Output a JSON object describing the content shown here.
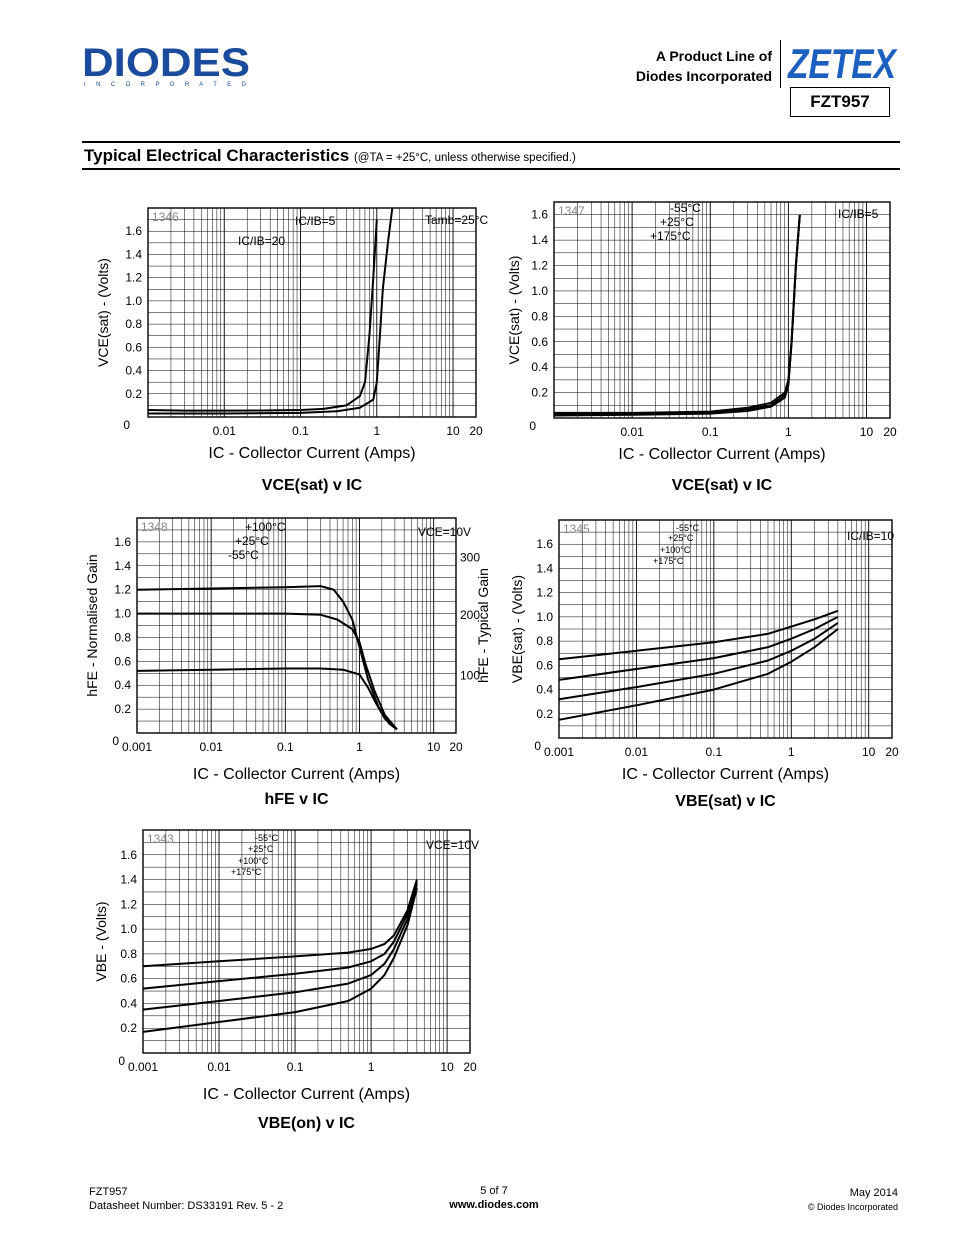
{
  "header": {
    "brand": "DIODES",
    "brand_sub": "I N C O R P O R A T E D",
    "product_line_1": "A Product Line of",
    "product_line_2": "Diodes Incorporated",
    "zetex": "ZETEX",
    "part_number": "FZT957"
  },
  "section": {
    "title": "Typical Electrical Characteristics",
    "conditions": "(@TA = +25°C, unless otherwise specified.)"
  },
  "colors": {
    "ink": "#000000",
    "grid": "#000000",
    "paper": "#ffffff"
  },
  "chart_data": [
    {
      "type": "line",
      "id": "1346",
      "title": "VCE(sat) v IC",
      "xlabel": "IC - Collector Current (Amps)",
      "ylabel": "VCE(sat) - (Volts)",
      "x_scale": "log",
      "xlim": [
        0.001,
        20
      ],
      "x_ticks": [
        "0.01",
        "0.1",
        "1",
        "10",
        "20"
      ],
      "ylim": [
        0,
        1.8
      ],
      "y_ticks": [
        "0",
        "0.2",
        "0.4",
        "0.6",
        "0.8",
        "1.0",
        "1.2",
        "1.4",
        "1.6"
      ],
      "annotations": [
        "IC/IB=5",
        "IC/IB=20",
        "Tamb=25°C"
      ],
      "grid": true,
      "series": [
        {
          "x": [
            0.001,
            0.003,
            0.01,
            0.03,
            0.1,
            0.2,
            0.4,
            0.6,
            0.7,
            0.8,
            0.9,
            1.0
          ],
          "y": [
            0.06,
            0.055,
            0.055,
            0.056,
            0.06,
            0.07,
            0.1,
            0.18,
            0.3,
            0.7,
            1.2,
            1.7
          ]
        },
        {
          "x": [
            0.001,
            0.01,
            0.1,
            0.3,
            0.6,
            0.9,
            1.0,
            1.1,
            1.2,
            1.4,
            1.6
          ],
          "y": [
            0.03,
            0.03,
            0.035,
            0.05,
            0.08,
            0.15,
            0.3,
            0.7,
            1.1,
            1.5,
            1.8
          ]
        }
      ]
    },
    {
      "type": "line",
      "id": "1347",
      "title": "VCE(sat) v IC",
      "xlabel": "IC - Collector Current (Amps)",
      "ylabel": "VCE(sat) - (Volts)",
      "x_scale": "log",
      "xlim": [
        0.001,
        20
      ],
      "x_ticks": [
        "0.01",
        "0.1",
        "1",
        "10",
        "20"
      ],
      "ylim": [
        0,
        1.7
      ],
      "y_ticks": [
        "0",
        "0.2",
        "0.4",
        "0.6",
        "0.8",
        "1.0",
        "1.2",
        "1.4",
        "1.6"
      ],
      "annotations": [
        "-55°C",
        "+25°C",
        "+175°C",
        "IC/IB=5"
      ],
      "grid": true,
      "series": [
        {
          "x": [
            0.001,
            0.01,
            0.1,
            0.3,
            0.6,
            0.9,
            1.0,
            1.1,
            1.25,
            1.4
          ],
          "y": [
            0.04,
            0.04,
            0.05,
            0.08,
            0.12,
            0.2,
            0.3,
            0.6,
            1.2,
            1.6
          ]
        },
        {
          "x": [
            0.001,
            0.01,
            0.1,
            0.3,
            0.6,
            0.9,
            1.0,
            1.1,
            1.25,
            1.4
          ],
          "y": [
            0.03,
            0.035,
            0.045,
            0.07,
            0.1,
            0.18,
            0.28,
            0.6,
            1.2,
            1.6
          ]
        },
        {
          "x": [
            0.001,
            0.01,
            0.1,
            0.3,
            0.6,
            0.9,
            1.0,
            1.1,
            1.25,
            1.4
          ],
          "y": [
            0.02,
            0.025,
            0.035,
            0.055,
            0.09,
            0.16,
            0.26,
            0.6,
            1.2,
            1.6
          ]
        }
      ]
    },
    {
      "type": "line",
      "id": "1348",
      "title": "hFE v IC",
      "xlabel": "IC - Collector Current (Amps)",
      "ylabel": "hFE - Normalised Gain",
      "ylabel_right": "hFE - Typical Gain",
      "x_scale": "log",
      "xlim": [
        0.001,
        20
      ],
      "x_ticks": [
        "0.001",
        "0.01",
        "0.1",
        "1",
        "10",
        "20"
      ],
      "ylim": [
        0,
        1.8
      ],
      "y_ticks": [
        "0",
        "0.2",
        "0.4",
        "0.6",
        "0.8",
        "1.0",
        "1.2",
        "1.4",
        "1.6"
      ],
      "y_right_ticks": [
        "100",
        "200",
        "300"
      ],
      "annotations": [
        "+100°C",
        "+25°C",
        "-55°C",
        "VCE=10V"
      ],
      "grid": true,
      "series": [
        {
          "x": [
            0.001,
            0.01,
            0.1,
            0.3,
            0.45,
            0.6,
            0.8,
            1.0,
            1.3,
            1.8,
            2.5,
            3.2
          ],
          "y": [
            1.2,
            1.21,
            1.22,
            1.23,
            1.2,
            1.1,
            0.95,
            0.72,
            0.45,
            0.22,
            0.08,
            0.03
          ]
        },
        {
          "x": [
            0.001,
            0.01,
            0.1,
            0.3,
            0.5,
            0.8,
            1.0,
            1.2,
            1.6,
            2.2,
            3.2
          ],
          "y": [
            1.0,
            1.0,
            1.0,
            0.99,
            0.95,
            0.87,
            0.76,
            0.58,
            0.35,
            0.15,
            0.03
          ]
        },
        {
          "x": [
            0.001,
            0.01,
            0.1,
            0.3,
            0.6,
            1.0,
            1.3,
            1.7,
            2.2,
            3.2
          ],
          "y": [
            0.52,
            0.53,
            0.54,
            0.54,
            0.53,
            0.49,
            0.38,
            0.24,
            0.12,
            0.03
          ]
        }
      ]
    },
    {
      "type": "line",
      "id": "1345",
      "title": "VBE(sat) v IC",
      "xlabel": "IC - Collector Current (Amps)",
      "ylabel": "VBE(sat) - (Volts)",
      "x_scale": "log",
      "xlim": [
        0.001,
        20
      ],
      "x_ticks": [
        "0.001",
        "0.01",
        "0.1",
        "1",
        "10",
        "20"
      ],
      "ylim": [
        0,
        1.8
      ],
      "y_ticks": [
        "0",
        "0.2",
        "0.4",
        "0.6",
        "0.8",
        "1.0",
        "1.2",
        "1.4",
        "1.6"
      ],
      "annotations": [
        "-55°C",
        "+25°C",
        "+100°C",
        "+175°C",
        "IC/IB=10"
      ],
      "grid": true,
      "series": [
        {
          "x": [
            0.001,
            0.01,
            0.1,
            0.5,
            1,
            2,
            4
          ],
          "y": [
            0.65,
            0.72,
            0.79,
            0.86,
            0.92,
            0.98,
            1.05
          ]
        },
        {
          "x": [
            0.001,
            0.01,
            0.1,
            0.5,
            1,
            2,
            4
          ],
          "y": [
            0.48,
            0.57,
            0.66,
            0.75,
            0.82,
            0.9,
            1.0
          ]
        },
        {
          "x": [
            0.001,
            0.01,
            0.1,
            0.5,
            1,
            2,
            4
          ],
          "y": [
            0.32,
            0.42,
            0.53,
            0.64,
            0.72,
            0.82,
            0.95
          ]
        },
        {
          "x": [
            0.001,
            0.01,
            0.1,
            0.5,
            1,
            2,
            4
          ],
          "y": [
            0.15,
            0.27,
            0.4,
            0.53,
            0.63,
            0.75,
            0.9
          ]
        }
      ]
    },
    {
      "type": "line",
      "id": "1343",
      "title": "VBE(on) v IC",
      "xlabel": "IC - Collector Current (Amps)",
      "ylabel": "VBE - (Volts)",
      "x_scale": "log",
      "xlim": [
        0.001,
        20
      ],
      "x_ticks": [
        "0.001",
        "0.01",
        "0.1",
        "1",
        "10",
        "20"
      ],
      "ylim": [
        0,
        1.8
      ],
      "y_ticks": [
        "0",
        "0.2",
        "0.4",
        "0.6",
        "0.8",
        "1.0",
        "1.2",
        "1.4",
        "1.6"
      ],
      "annotations": [
        "-55°C",
        "+25°C",
        "+100°C",
        "+175°C",
        "VCE=10V"
      ],
      "grid": true,
      "series": [
        {
          "x": [
            0.001,
            0.01,
            0.1,
            0.5,
            1,
            1.5,
            2,
            3,
            4
          ],
          "y": [
            0.7,
            0.74,
            0.78,
            0.81,
            0.84,
            0.88,
            0.95,
            1.15,
            1.4
          ]
        },
        {
          "x": [
            0.001,
            0.01,
            0.1,
            0.5,
            1,
            1.5,
            2,
            3,
            4
          ],
          "y": [
            0.52,
            0.58,
            0.64,
            0.69,
            0.74,
            0.8,
            0.9,
            1.12,
            1.38
          ]
        },
        {
          "x": [
            0.001,
            0.01,
            0.1,
            0.5,
            1,
            1.5,
            2,
            3,
            4
          ],
          "y": [
            0.35,
            0.42,
            0.49,
            0.56,
            0.63,
            0.72,
            0.84,
            1.08,
            1.36
          ]
        },
        {
          "x": [
            0.001,
            0.01,
            0.1,
            0.5,
            1,
            1.5,
            2,
            3,
            4
          ],
          "y": [
            0.17,
            0.25,
            0.33,
            0.42,
            0.52,
            0.63,
            0.77,
            1.03,
            1.33
          ]
        }
      ]
    }
  ],
  "footer": {
    "part": "FZT957",
    "datasheet": "Datasheet Number: DS33191 Rev. 5 - 2",
    "page": "5 of 7",
    "website": "www.diodes.com",
    "date": "May 2014",
    "copyright": "© Diodes Incorporated"
  }
}
